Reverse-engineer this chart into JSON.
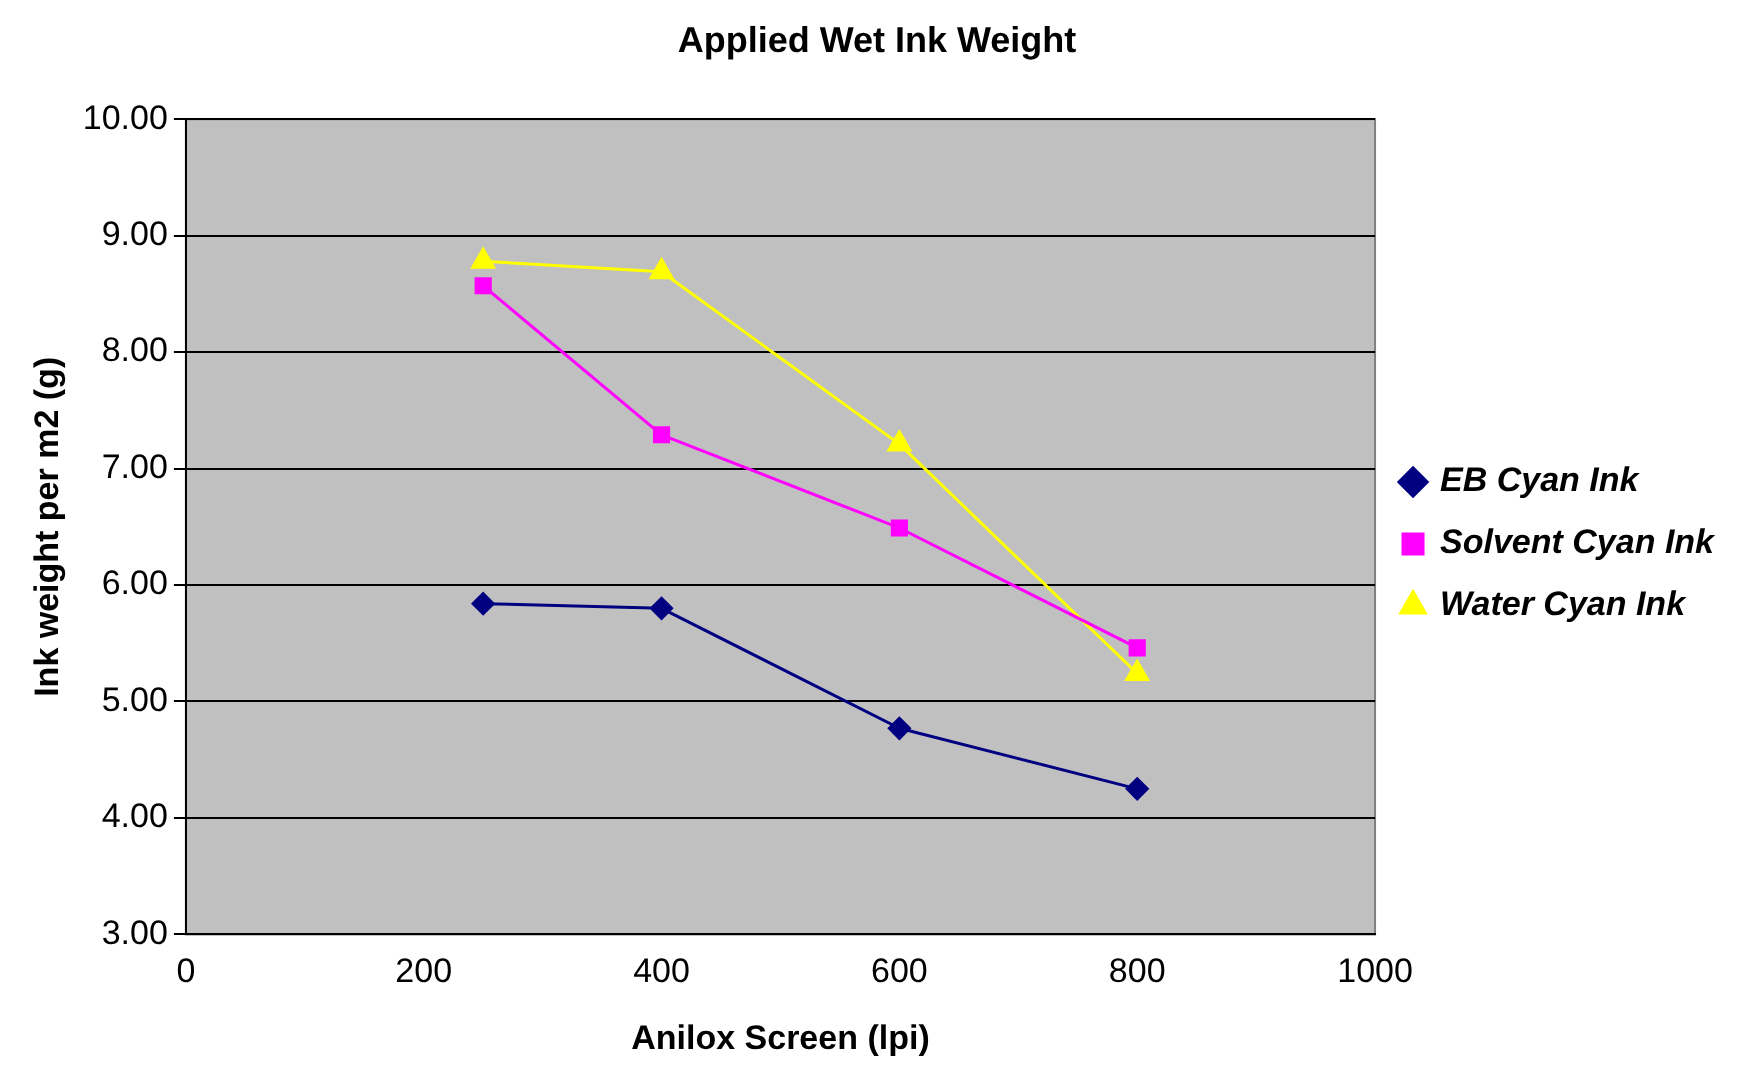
{
  "chart_data": {
    "type": "line",
    "title": "Applied Wet Ink Weight",
    "xlabel": "Anilox Screen (lpi)",
    "ylabel": "Ink weight per m2 (g)",
    "x": [
      250,
      400,
      600,
      800
    ],
    "series": [
      {
        "name": "EB Cyan Ink",
        "color": "#000080",
        "marker": "diamond",
        "values": [
          5.84,
          5.8,
          4.77,
          4.25
        ]
      },
      {
        "name": "Solvent Cyan Ink",
        "color": "#ff00ff",
        "marker": "square",
        "values": [
          8.57,
          7.29,
          6.49,
          5.46
        ]
      },
      {
        "name": "Water Cyan Ink",
        "color": "#ffff00",
        "marker": "triangle",
        "values": [
          8.78,
          8.69,
          7.21,
          5.24
        ]
      }
    ],
    "xlim": [
      0,
      1000
    ],
    "xticks": [
      0,
      200,
      400,
      600,
      800,
      1000
    ],
    "ylim": [
      3,
      10
    ],
    "yticks": [
      {
        "value": 3,
        "label": "3.00"
      },
      {
        "value": 4,
        "label": "4.00"
      },
      {
        "value": 5,
        "label": "5.00"
      },
      {
        "value": 6,
        "label": "6.00"
      },
      {
        "value": 7,
        "label": "7.00"
      },
      {
        "value": 8,
        "label": "8.00"
      },
      {
        "value": 9,
        "label": "9.00"
      },
      {
        "value": 10,
        "label": "10.00"
      }
    ],
    "grid": "y",
    "legend": "right"
  }
}
